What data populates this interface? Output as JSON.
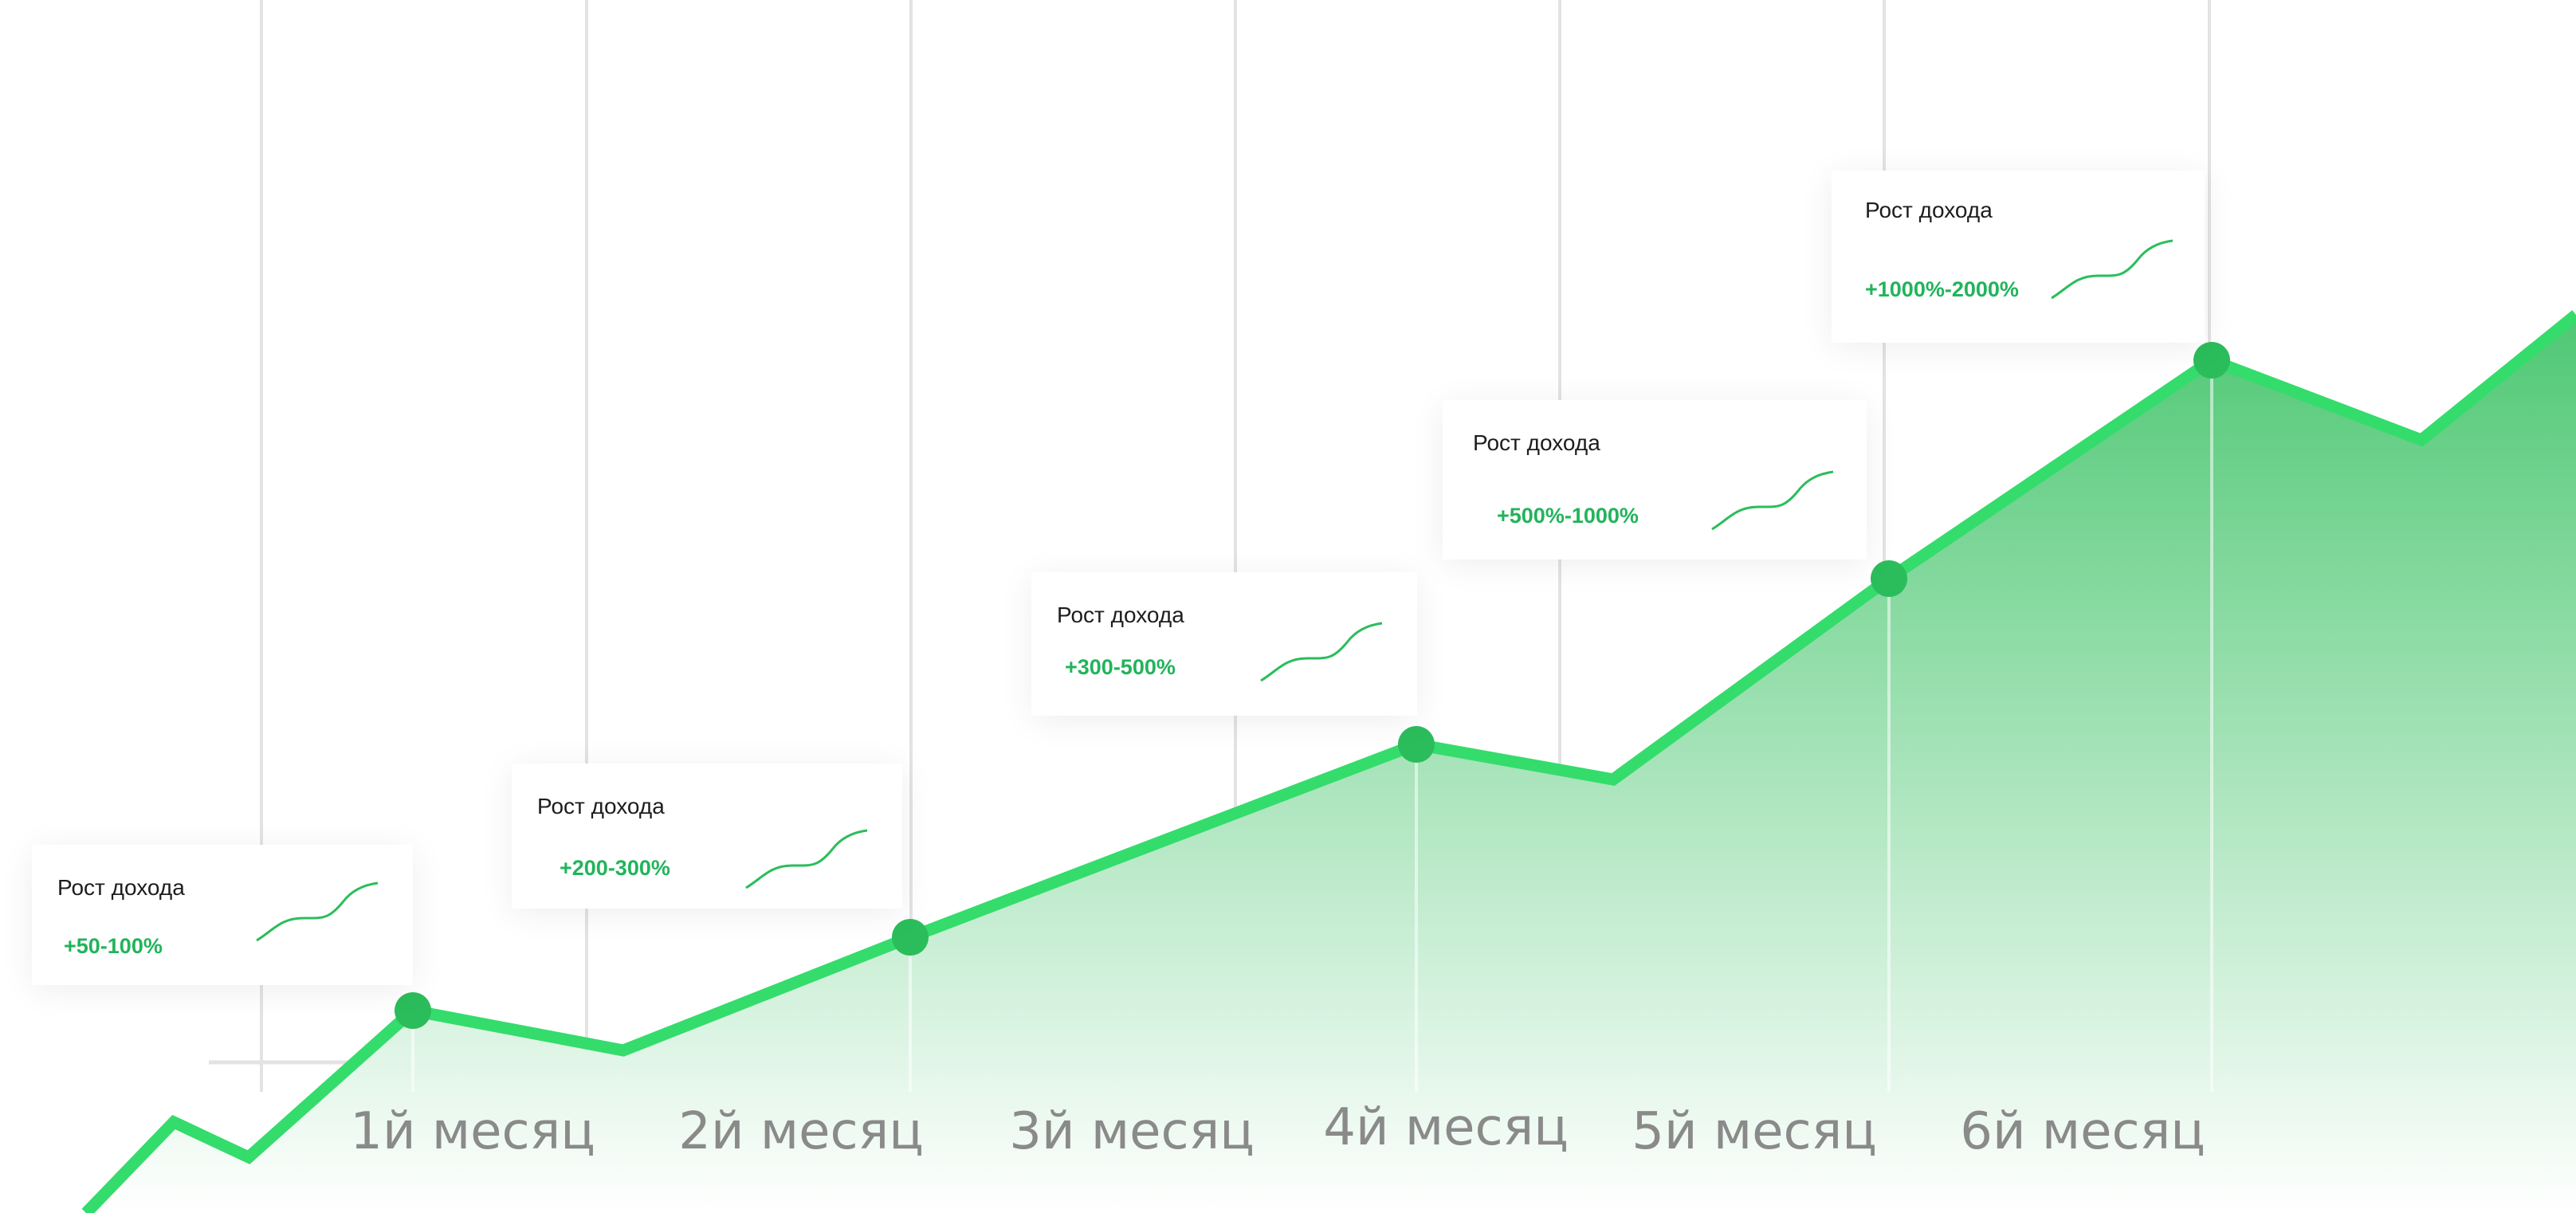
{
  "colors": {
    "line": "#34dc6c",
    "point": "#2bbd5b",
    "area_top": "#4fc874",
    "area_bottom": "#ffffff",
    "grid": "#e3e3e3",
    "value_text": "#21b45b"
  },
  "chart_data": {
    "type": "area",
    "title": "",
    "xlabel": "",
    "ylabel": "",
    "categories": [
      "1й месяц",
      "2й месяц",
      "3й месяц",
      "4й месяц",
      "5й месяц",
      "6й месяц"
    ],
    "grid": true,
    "legend": "none",
    "callouts": [
      {
        "title": "Рост дохода",
        "value": "+50-100%"
      },
      {
        "title": "Рост дохода",
        "value": "+200-300%"
      },
      {
        "title": "Рост дохода",
        "value": "+300-500%"
      },
      {
        "title": "Рост дохода",
        "value": "+500%-1000%"
      },
      {
        "title": "Рост дохода",
        "value": "+1000%-2000%"
      }
    ]
  }
}
